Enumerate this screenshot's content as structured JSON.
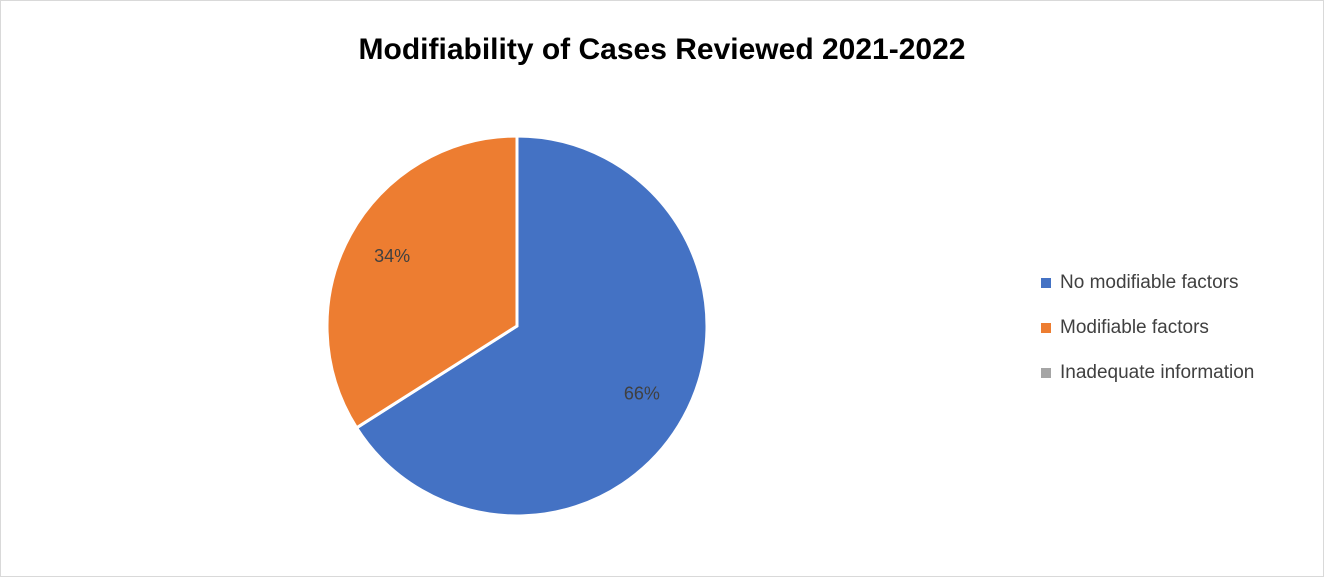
{
  "chart_data": {
    "type": "pie",
    "title": "Modifiability of Cases Reviewed 2021-2022",
    "categories": [
      "No modifiable factors",
      "Modifiable factors",
      "Inadequate information"
    ],
    "values": [
      66,
      34,
      0
    ],
    "value_labels": [
      "66%",
      "34%",
      null
    ],
    "colors": [
      "#4472c4",
      "#ed7d31",
      "#a5a5a5"
    ],
    "legend": "right"
  }
}
